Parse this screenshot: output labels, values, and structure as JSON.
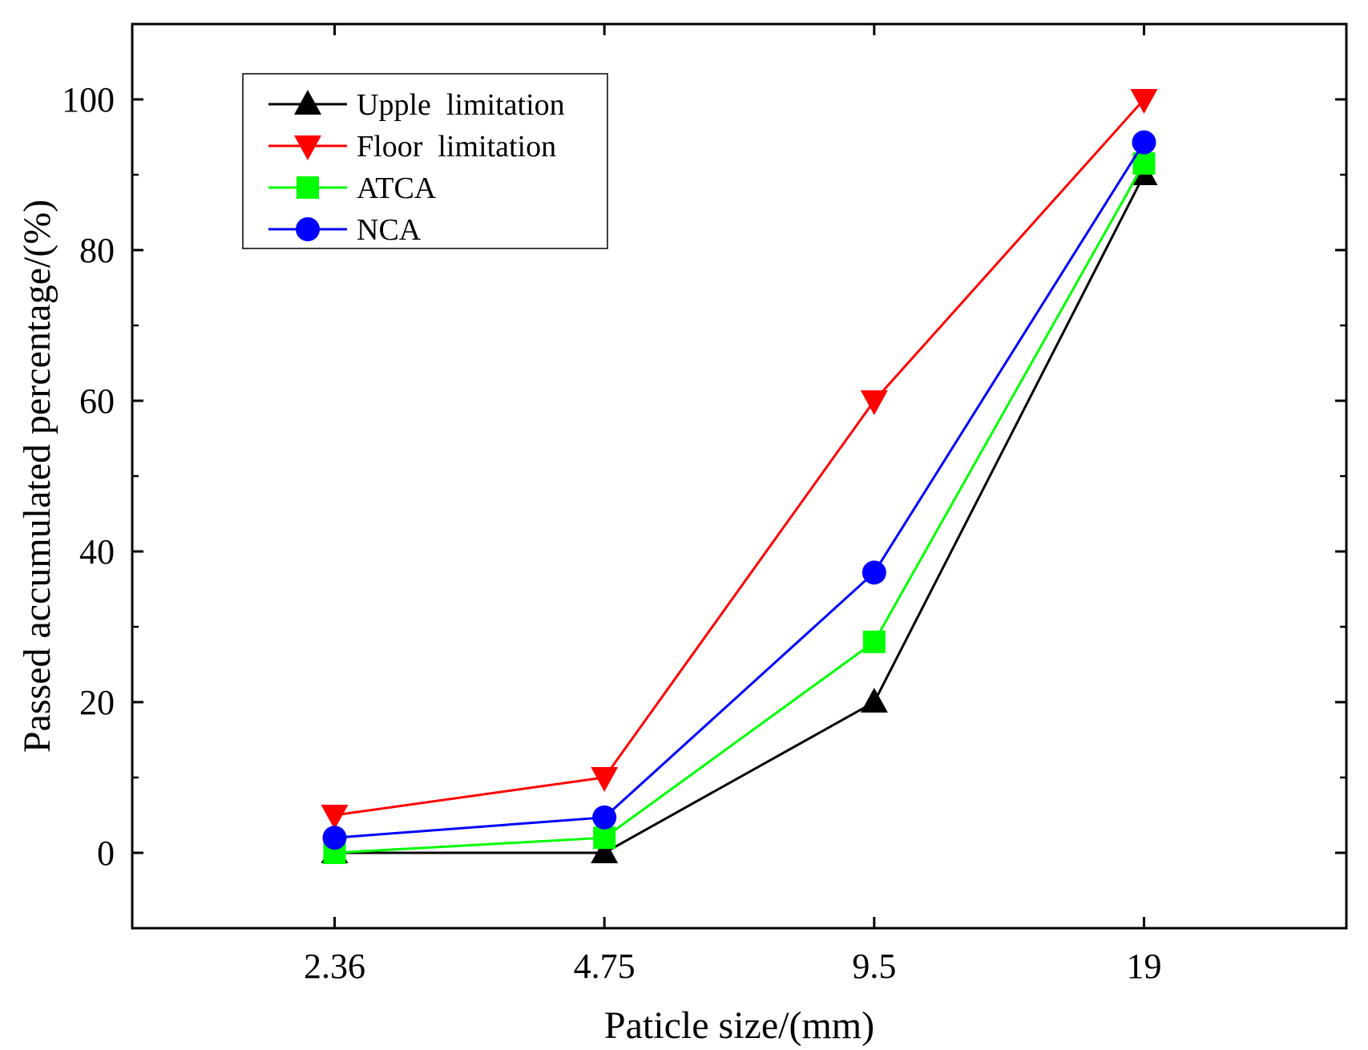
{
  "chart_data": {
    "type": "line",
    "title": "",
    "xlabel": "Paticle size/(mm)",
    "ylabel": "Passed accumulated percentage/(%)",
    "categories": [
      "2.36",
      "4.75",
      "9.5",
      "19"
    ],
    "ylim": [
      -10,
      110
    ],
    "yticks": [
      0,
      20,
      40,
      60,
      80,
      100
    ],
    "grid": false,
    "legend_position": "top-left",
    "series": [
      {
        "name": "Upple  limitation",
        "color": "#000000",
        "marker": "triangle-up",
        "values": [
          0,
          0,
          20,
          90
        ]
      },
      {
        "name": "Floor  limitation",
        "color": "#ff0000",
        "marker": "triangle-down",
        "values": [
          5,
          10,
          60,
          100
        ]
      },
      {
        "name": "ATCA",
        "color": "#00ff00",
        "marker": "square",
        "values": [
          0,
          2,
          28,
          91.5
        ]
      },
      {
        "name": "NCA",
        "color": "#0000ff",
        "marker": "circle",
        "values": [
          2,
          4.7,
          37.2,
          94.3
        ]
      }
    ]
  }
}
